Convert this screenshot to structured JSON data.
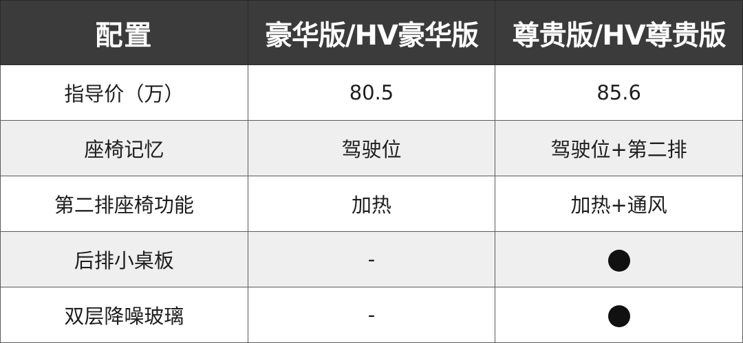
{
  "table": {
    "headers": [
      "配置",
      "豪华版/HV豪华版",
      "尊贵版/HV尊贵版"
    ],
    "rows": [
      {
        "label": "指导价（万）",
        "values": [
          "80.5",
          "85.6"
        ]
      },
      {
        "label": "座椅记忆",
        "values": [
          "驾驶位",
          "驾驶位+第二排"
        ]
      },
      {
        "label": "第二排座椅功能",
        "values": [
          "加热",
          "加热+通风"
        ]
      },
      {
        "label": "后排小桌板",
        "values": [
          "-",
          "●"
        ]
      },
      {
        "label": "双层降噪玻璃",
        "values": [
          "-",
          "●"
        ]
      }
    ]
  },
  "colors": {
    "header_bg": "#3b3b3b",
    "stripe": "#efefef",
    "dot": "#111111"
  }
}
